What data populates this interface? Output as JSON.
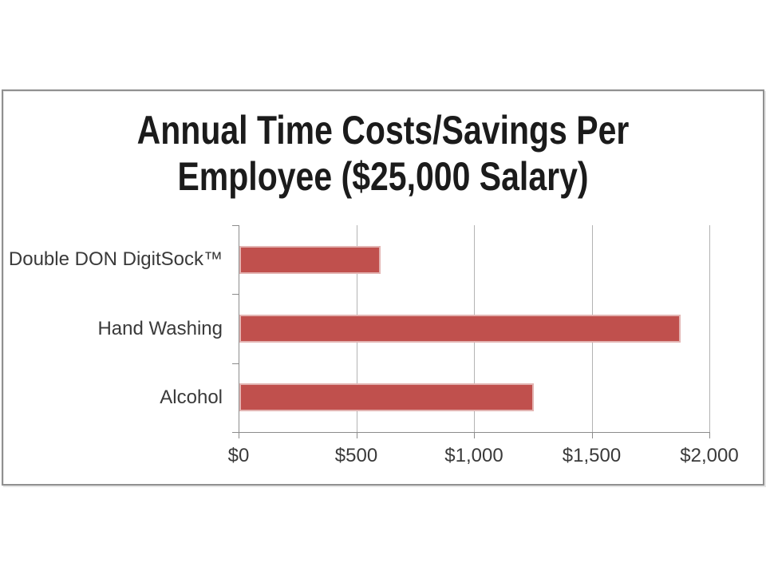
{
  "slide": {
    "title_lines": [
      "Annual Time Costs/Savings Per",
      "Employee ($25,000 Salary)"
    ]
  },
  "chart_data": {
    "type": "bar",
    "orientation": "horizontal",
    "title": "Annual Time Costs/Savings Per Employee ($25,000 Salary)",
    "categories": [
      "Double DON DigitSock™",
      "Hand Washing",
      "Alcohol"
    ],
    "values": [
      600,
      1875,
      1250
    ],
    "xlabel": "",
    "ylabel": "",
    "xlim": [
      0,
      2000
    ],
    "xticks": [
      0,
      500,
      1000,
      1500,
      2000
    ],
    "xtick_labels": [
      "$0",
      "$500",
      "$1,000",
      "$1,500",
      "$2,000"
    ],
    "grid": true,
    "legend": false,
    "colors": {
      "bar_fill": "#C0504D",
      "bar_edge": "#E3B4B2",
      "axis_line": "#8C8C8C",
      "gridline": "#B3B3B3",
      "label_text": "#3A3A3A",
      "title_text": "#1B1B1B",
      "frame_border": "#909090"
    }
  }
}
